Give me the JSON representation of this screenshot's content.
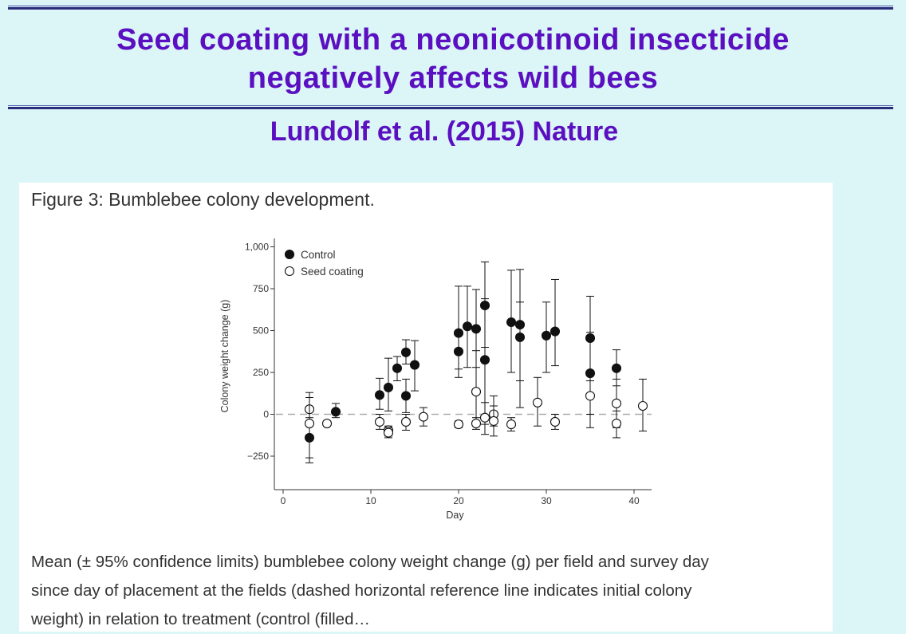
{
  "slide": {
    "title_line1": "Seed coating with a neonicotinoid insecticide",
    "title_line2": "negatively affects wild bees",
    "subtitle": "Lundolf et al.  (2015) Nature"
  },
  "figure": {
    "heading": "Figure 3: Bumblebee colony development.",
    "caption_lines": [
      "Mean (± 95% confidence limits) bumblebee colony weight change (g) per field and survey day",
      "since day of placement at the fields (dashed horizontal reference line indicates initial colony",
      "weight) in relation to treatment (control (filled…"
    ]
  },
  "chart_data": {
    "type": "scatter",
    "xlabel": "Day",
    "ylabel": "Colony weight change (g)",
    "xlim": [
      -1,
      42
    ],
    "ylim": [
      -450,
      1050
    ],
    "x_ticks": [
      0,
      10,
      20,
      30,
      40
    ],
    "y_ticks": [
      -250,
      0,
      250,
      500,
      750,
      1000
    ],
    "y_tick_labels": [
      "−250",
      "0",
      "250",
      "500",
      "750",
      "1,000"
    ],
    "reference_line_y": 0,
    "legend": {
      "position": "top-left"
    },
    "series": [
      {
        "name": "Control",
        "marker": "filled",
        "points": [
          {
            "x": 3,
            "y": -140,
            "lo": -290,
            "hi": -20
          },
          {
            "x": 6,
            "y": 15,
            "lo": -20,
            "hi": 65
          },
          {
            "x": 11,
            "y": 115,
            "lo": 30,
            "hi": 215
          },
          {
            "x": 12,
            "y": 160,
            "lo": 20,
            "hi": 335
          },
          {
            "x": 13,
            "y": 275,
            "lo": 200,
            "hi": 345
          },
          {
            "x": 14,
            "y": 370,
            "lo": 300,
            "hi": 445
          },
          {
            "x": 14,
            "y": 110,
            "lo": 10,
            "hi": 210
          },
          {
            "x": 15,
            "y": 295,
            "lo": 140,
            "hi": 440
          },
          {
            "x": 20,
            "y": 485,
            "lo": 220,
            "hi": 765
          },
          {
            "x": 20,
            "y": 375,
            "lo": 270,
            "hi": 490
          },
          {
            "x": 21,
            "y": 525,
            "lo": 280,
            "hi": 765
          },
          {
            "x": 22,
            "y": 510,
            "lo": 280,
            "hi": 745
          },
          {
            "x": 23,
            "y": 650,
            "lo": 400,
            "hi": 910
          },
          {
            "x": 23,
            "y": 325,
            "lo": -60,
            "hi": 690
          },
          {
            "x": 26,
            "y": 550,
            "lo": 250,
            "hi": 860
          },
          {
            "x": 27,
            "y": 535,
            "lo": 200,
            "hi": 865
          },
          {
            "x": 27,
            "y": 460,
            "lo": 40,
            "hi": 670
          },
          {
            "x": 30,
            "y": 470,
            "lo": 250,
            "hi": 670
          },
          {
            "x": 31,
            "y": 495,
            "lo": 290,
            "hi": 805
          },
          {
            "x": 35,
            "y": 455,
            "lo": 200,
            "hi": 705
          },
          {
            "x": 35,
            "y": 245,
            "lo": 0,
            "hi": 490
          },
          {
            "x": 38,
            "y": 275,
            "lo": 170,
            "hi": 385
          }
        ]
      },
      {
        "name": "Seed coating",
        "marker": "open",
        "points": [
          {
            "x": 3,
            "y": 30,
            "lo": -40,
            "hi": 130
          },
          {
            "x": 3,
            "y": -55,
            "lo": -260,
            "hi": 100
          },
          {
            "x": 5,
            "y": -55,
            "lo": -70,
            "hi": -40
          },
          {
            "x": 11,
            "y": -45,
            "lo": -90,
            "hi": 0
          },
          {
            "x": 12,
            "y": -95,
            "lo": -130,
            "hi": -70
          },
          {
            "x": 12,
            "y": -110,
            "lo": -140,
            "hi": -80
          },
          {
            "x": 14,
            "y": -45,
            "lo": -95,
            "hi": 0
          },
          {
            "x": 16,
            "y": -15,
            "lo": -70,
            "hi": 40
          },
          {
            "x": 20,
            "y": -60,
            "lo": -80,
            "hi": -40
          },
          {
            "x": 22,
            "y": 135,
            "lo": -60,
            "hi": 380
          },
          {
            "x": 22,
            "y": -55,
            "lo": -90,
            "hi": -20
          },
          {
            "x": 23,
            "y": -20,
            "lo": -120,
            "hi": 70
          },
          {
            "x": 24,
            "y": 0,
            "lo": -70,
            "hi": 110
          },
          {
            "x": 24,
            "y": -40,
            "lo": -130,
            "hi": 50
          },
          {
            "x": 26,
            "y": -60,
            "lo": -100,
            "hi": -20
          },
          {
            "x": 29,
            "y": 70,
            "lo": -70,
            "hi": 220
          },
          {
            "x": 31,
            "y": -45,
            "lo": -90,
            "hi": 0
          },
          {
            "x": 35,
            "y": 110,
            "lo": -80,
            "hi": 250
          },
          {
            "x": 38,
            "y": 65,
            "lo": -80,
            "hi": 210
          },
          {
            "x": 38,
            "y": -55,
            "lo": -140,
            "hi": 20
          },
          {
            "x": 41,
            "y": 50,
            "lo": -100,
            "hi": 210
          }
        ]
      }
    ]
  },
  "colors": {
    "title": "#5a0fc0",
    "background": "#dcf6f8",
    "marker": "#111111",
    "reference_line": "#aaaaaa"
  }
}
